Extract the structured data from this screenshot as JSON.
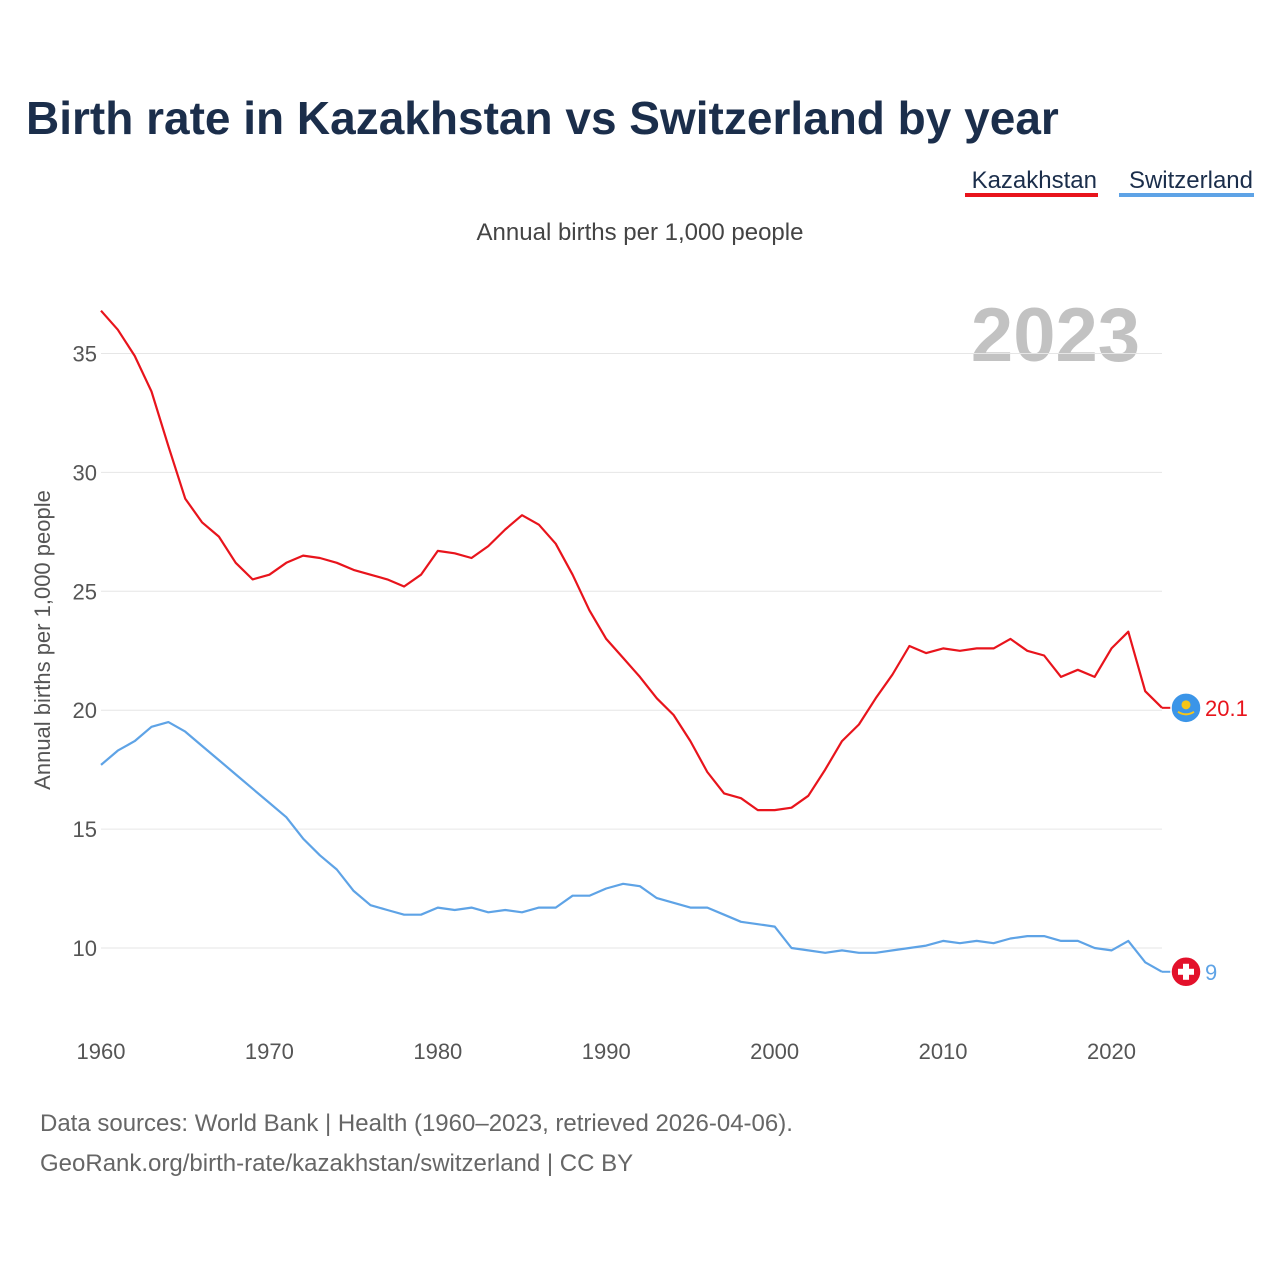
{
  "header": {
    "title": "Birth rate in Kazakhstan vs Switzerland by year",
    "subtitle": "Annual births per 1,000 people"
  },
  "legend": [
    {
      "name": "Kazakhstan",
      "color": "#e8141c"
    },
    {
      "name": "Switzerland",
      "color": "#5ea3e6"
    }
  ],
  "highlight_year": "2023",
  "footer": {
    "line1": "Data sources: World Bank | Health (1960–2023, retrieved 2026-04-06).",
    "line2": "GeoRank.org/birth-rate/kazakhstan/switzerland | CC BY"
  },
  "chart_data": {
    "type": "line",
    "title": "Birth rate in Kazakhstan vs Switzerland by year",
    "ylabel": "Annual births per 1,000 people",
    "xlabel": "",
    "xlim": [
      1960,
      2023
    ],
    "ylim": [
      6.5,
      37
    ],
    "yticks": [
      10,
      15,
      20,
      25,
      30,
      35
    ],
    "xticks": [
      1960,
      1970,
      1980,
      1990,
      2000,
      2010,
      2020
    ],
    "grid": true,
    "x": [
      1960,
      1961,
      1962,
      1963,
      1964,
      1965,
      1966,
      1967,
      1968,
      1969,
      1970,
      1971,
      1972,
      1973,
      1974,
      1975,
      1976,
      1977,
      1978,
      1979,
      1980,
      1981,
      1982,
      1983,
      1984,
      1985,
      1986,
      1987,
      1988,
      1989,
      1990,
      1991,
      1992,
      1993,
      1994,
      1995,
      1996,
      1997,
      1998,
      1999,
      2000,
      2001,
      2002,
      2003,
      2004,
      2005,
      2006,
      2007,
      2008,
      2009,
      2010,
      2011,
      2012,
      2013,
      2014,
      2015,
      2016,
      2017,
      2018,
      2019,
      2020,
      2021,
      2022,
      2023
    ],
    "series": [
      {
        "name": "Kazakhstan",
        "color": "#e8141c",
        "end_label": "20.1",
        "values": [
          36.8,
          36.0,
          34.9,
          33.4,
          31.1,
          28.9,
          27.9,
          27.3,
          26.2,
          25.5,
          25.7,
          26.2,
          26.5,
          26.4,
          26.2,
          25.9,
          25.7,
          25.5,
          25.2,
          25.7,
          26.7,
          26.6,
          26.4,
          26.9,
          27.6,
          28.2,
          27.8,
          27.0,
          25.7,
          24.2,
          23.0,
          22.2,
          21.4,
          20.5,
          19.8,
          18.7,
          17.4,
          16.5,
          16.3,
          15.8,
          15.8,
          15.9,
          16.4,
          17.5,
          18.7,
          19.4,
          20.5,
          21.5,
          22.7,
          22.4,
          22.6,
          22.5,
          22.6,
          22.6,
          23.0,
          22.5,
          22.3,
          21.4,
          21.7,
          21.4,
          22.6,
          23.3,
          20.8,
          20.1
        ]
      },
      {
        "name": "Switzerland",
        "color": "#5ea3e6",
        "end_label": "9",
        "values": [
          17.7,
          18.3,
          18.7,
          19.3,
          19.5,
          19.1,
          18.5,
          17.9,
          17.3,
          16.7,
          16.1,
          15.5,
          14.6,
          13.9,
          13.3,
          12.4,
          11.8,
          11.6,
          11.4,
          11.4,
          11.7,
          11.6,
          11.7,
          11.5,
          11.6,
          11.5,
          11.7,
          11.7,
          12.2,
          12.2,
          12.5,
          12.7,
          12.6,
          12.1,
          11.9,
          11.7,
          11.7,
          11.4,
          11.1,
          11.0,
          10.9,
          10.0,
          9.9,
          9.8,
          9.9,
          9.8,
          9.8,
          9.9,
          10.0,
          10.1,
          10.3,
          10.2,
          10.3,
          10.2,
          10.4,
          10.5,
          10.5,
          10.3,
          10.3,
          10.0,
          9.9,
          10.3,
          9.4,
          9.0
        ]
      }
    ]
  }
}
